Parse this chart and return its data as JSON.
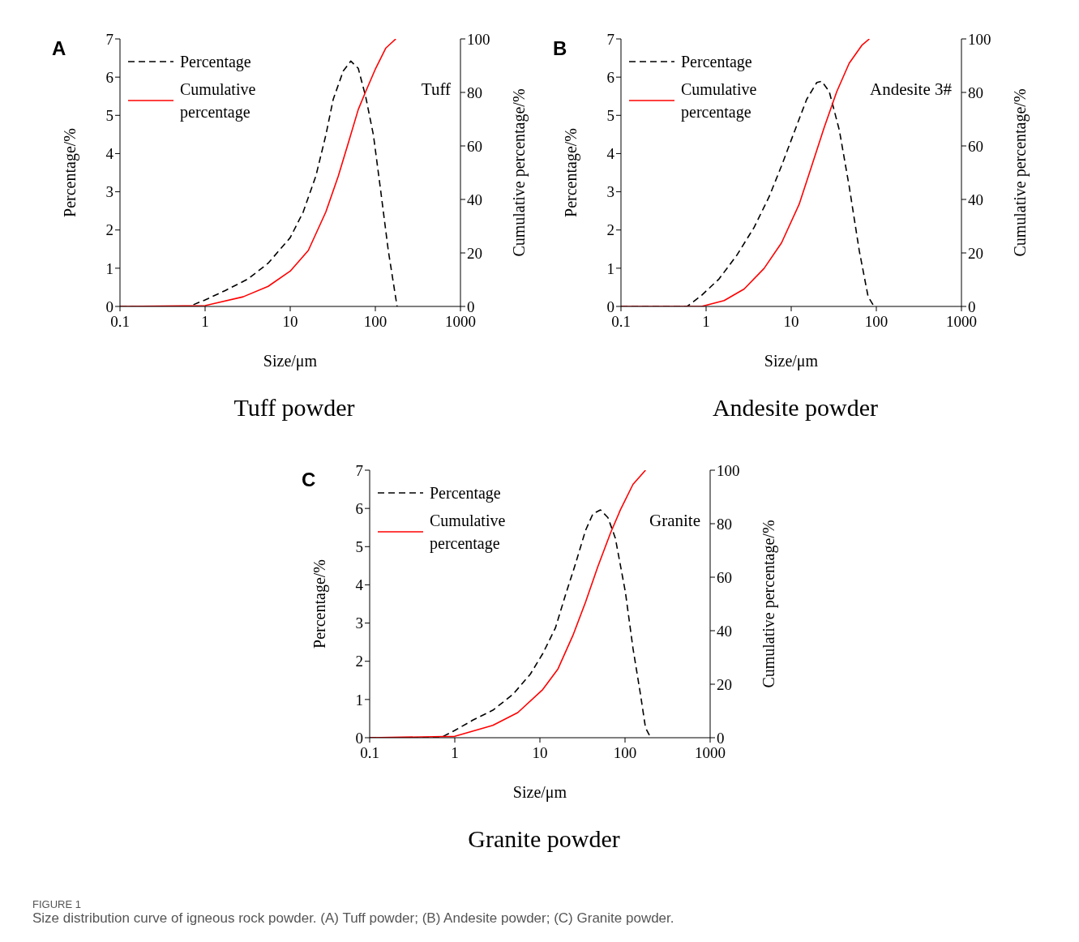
{
  "chart_data": [
    {
      "type": "line",
      "title": "Tuff powder",
      "xlabel": "Size/μm",
      "ylabel": "Percentage/%",
      "y2label": "Cumulative percentage/%",
      "annotations": [
        "A",
        "Tuff"
      ],
      "log": "x",
      "xlim": [
        0.1,
        1000
      ],
      "xticks": [
        0.1,
        1,
        10,
        100,
        1000
      ],
      "ylim": [
        0,
        7
      ],
      "yticks": [
        0,
        1,
        2,
        3,
        4,
        5,
        6,
        7
      ],
      "y2lim": [
        0,
        100
      ],
      "y2ticks": [
        0,
        20,
        40,
        60,
        80,
        100
      ],
      "legend": "top left",
      "marker": "none",
      "series": [
        {
          "name": "Percentage",
          "color": "#000000",
          "line_style": "dashed",
          "axis": "y",
          "x": [
            0.1,
            0.65,
            1,
            1.74,
            3.2,
            5.5,
            10,
            14.2,
            20,
            26.2,
            32,
            42,
            51.5,
            63,
            77,
            95,
            116,
            142,
            180
          ],
          "values": [
            0,
            0,
            0.17,
            0.42,
            0.72,
            1.13,
            1.8,
            2.47,
            3.41,
            4.48,
            5.42,
            6.16,
            6.42,
            6.23,
            5.49,
            4.48,
            3.0,
            1.46,
            0
          ]
        },
        {
          "name": "Cumulative percentage",
          "color": "#ff0000",
          "line_style": "solid",
          "axis": "y2",
          "x": [
            0.1,
            1,
            2.8,
            5.5,
            10,
            16.3,
            26.2,
            36.7,
            48,
            63,
            77,
            101,
            133,
            174
          ],
          "values": [
            0,
            0.3,
            3.6,
            7.5,
            13.2,
            20.9,
            35.3,
            48.7,
            61,
            73.6,
            80.3,
            89,
            96.6,
            100
          ]
        }
      ]
    },
    {
      "type": "line",
      "title": "Andesite powder",
      "xlabel": "Size/μm",
      "ylabel": "Percentage/%",
      "y2label": "Cumulative percentage/%",
      "annotations": [
        "B",
        "Andesite 3#"
      ],
      "log": "x",
      "xlim": [
        0.1,
        1000
      ],
      "xticks": [
        0.1,
        1,
        10,
        100,
        1000
      ],
      "ylim": [
        0,
        7
      ],
      "yticks": [
        0,
        1,
        2,
        3,
        4,
        5,
        6,
        7
      ],
      "y2lim": [
        0,
        100
      ],
      "y2ticks": [
        0,
        20,
        40,
        60,
        80,
        100
      ],
      "legend": "top left",
      "marker": "none",
      "series": [
        {
          "name": "Percentage",
          "color": "#000000",
          "line_style": "dashed",
          "axis": "y",
          "x": [
            0.1,
            0.6,
            0.885,
            1.42,
            2.28,
            3.67,
            5.5,
            7.7,
            10.8,
            15.2,
            20,
            22.9,
            28,
            36.7,
            48,
            63,
            80,
            94
          ],
          "values": [
            0,
            0,
            0.29,
            0.72,
            1.33,
            2.07,
            2.87,
            3.68,
            4.55,
            5.42,
            5.86,
            5.89,
            5.62,
            4.62,
            3.14,
            1.46,
            0.26,
            0
          ]
        },
        {
          "name": "Cumulative percentage",
          "color": "#ff0000",
          "line_style": "solid",
          "axis": "y2",
          "x": [
            0.1,
            0.885,
            1.63,
            2.8,
            4.8,
            7.7,
            12.4,
            17.4,
            24.4,
            34.3,
            48,
            67.5,
            82.8
          ],
          "values": [
            0,
            0,
            2.2,
            6.5,
            14.2,
            23.8,
            38.2,
            52.5,
            66.9,
            80.3,
            90.9,
            97.6,
            100
          ]
        }
      ]
    },
    {
      "type": "line",
      "title": "Granite powder",
      "xlabel": "Size/μm",
      "ylabel": "Percentage/%",
      "y2label": "Cumulative percentage/%",
      "annotations": [
        "C",
        "Granite",
        "FIGURE 1",
        "Size distribution curve of igneous rock powder. (A) Tuff powder; (B) Andesite powder; (C) Granite powder."
      ],
      "log": "x",
      "xlim": [
        0.1,
        1000
      ],
      "xticks": [
        0.1,
        1,
        10,
        100,
        1000
      ],
      "ylim": [
        0,
        7
      ],
      "yticks": [
        0,
        1,
        2,
        3,
        4,
        5,
        6,
        7
      ],
      "y2lim": [
        0,
        100
      ],
      "y2ticks": [
        0,
        20,
        40,
        60,
        80,
        100
      ],
      "legend": "top left",
      "marker": "none",
      "series": [
        {
          "name": "Percentage",
          "color": "#000000",
          "line_style": "dashed",
          "axis": "y",
          "x": [
            0.1,
            0.68,
            1,
            1.63,
            2.8,
            4.8,
            7.7,
            10.8,
            15.2,
            20,
            26.2,
            34.3,
            42,
            51.5,
            63,
            77,
            101,
            124,
            152,
            174,
            200
          ],
          "values": [
            0,
            0,
            0.19,
            0.46,
            0.72,
            1.13,
            1.66,
            2.2,
            2.87,
            3.74,
            4.55,
            5.42,
            5.86,
            5.96,
            5.76,
            5.22,
            3.81,
            2.34,
            1.13,
            0.26,
            0
          ]
        },
        {
          "name": "Cumulative percentage",
          "color": "#ff0000",
          "line_style": "solid",
          "axis": "y2",
          "x": [
            0.1,
            1,
            2.8,
            5.5,
            10.8,
            16.3,
            24.4,
            34.3,
            48,
            67.5,
            88,
            124,
            174
          ],
          "values": [
            0,
            0.5,
            4.6,
            9.4,
            18,
            25.7,
            38.2,
            50.6,
            64,
            76.5,
            85.1,
            94.7,
            100
          ]
        }
      ]
    }
  ]
}
